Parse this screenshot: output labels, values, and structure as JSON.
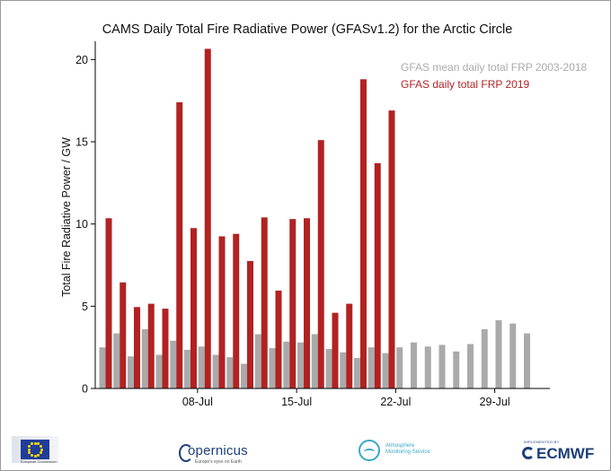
{
  "chart_data": {
    "type": "bar",
    "title": "CAMS Daily Total Fire Radiative Power (GFASv1.2) for the Arctic Circle",
    "xlabel": "",
    "ylabel": "Total Fire Radiative Power / GW",
    "ylim": [
      0,
      21
    ],
    "yticks": [
      0,
      5,
      10,
      15,
      20
    ],
    "xticks": [
      {
        "label": "08-Jul",
        "date": "2019-07-08"
      },
      {
        "label": "15-Jul",
        "date": "2019-07-15"
      },
      {
        "label": "22-Jul",
        "date": "2019-07-22"
      },
      {
        "label": "29-Jul",
        "date": "2019-07-29"
      }
    ],
    "dates": [
      "2019-07-01",
      "2019-07-02",
      "2019-07-03",
      "2019-07-04",
      "2019-07-05",
      "2019-07-06",
      "2019-07-07",
      "2019-07-08",
      "2019-07-09",
      "2019-07-10",
      "2019-07-11",
      "2019-07-12",
      "2019-07-13",
      "2019-07-14",
      "2019-07-15",
      "2019-07-16",
      "2019-07-17",
      "2019-07-18",
      "2019-07-19",
      "2019-07-20",
      "2019-07-21",
      "2019-07-22",
      "2019-07-23",
      "2019-07-24",
      "2019-07-25",
      "2019-07-26",
      "2019-07-27",
      "2019-07-28",
      "2019-07-29",
      "2019-07-30",
      "2019-07-31"
    ],
    "legend_position": "top-right",
    "series": [
      {
        "name": "GFAS mean daily total FRP 2003-2018",
        "color": "#aaaaaa",
        "values": [
          2.5,
          3.35,
          1.95,
          3.6,
          2.05,
          2.9,
          2.35,
          2.55,
          2.05,
          1.9,
          1.5,
          3.3,
          2.45,
          2.85,
          2.8,
          3.3,
          2.4,
          2.2,
          1.85,
          2.5,
          2.15,
          2.5,
          2.8,
          2.55,
          2.65,
          2.25,
          2.7,
          3.6,
          4.15,
          3.95,
          3.35
        ]
      },
      {
        "name": "GFAS daily total FRP 2019",
        "color": "#b22222",
        "values": [
          10.35,
          6.45,
          4.95,
          5.15,
          4.85,
          17.4,
          9.75,
          20.65,
          9.25,
          9.4,
          7.75,
          10.4,
          5.95,
          10.3,
          10.35,
          15.1,
          4.6,
          5.15,
          18.8,
          13.7,
          16.9,
          null,
          null,
          null,
          null,
          null,
          null,
          null,
          null,
          null,
          null
        ]
      }
    ]
  },
  "footer": {
    "eu_caption": "European Commission",
    "copernicus_name": "opernicus",
    "copernicus_tagline": "Europe's eyes on Earth",
    "cams_line1": "Atmosphere",
    "cams_line2": "Monitoring Service",
    "ecmwf_small": "IMPLEMENTED BY",
    "ecmwf_name": "ECMWF"
  }
}
